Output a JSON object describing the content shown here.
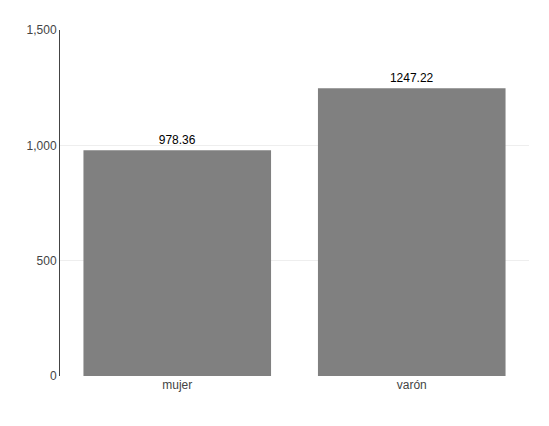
{
  "chart_data": {
    "type": "bar",
    "categories": [
      "mujer",
      "varón"
    ],
    "values": [
      978.36,
      1247.22
    ],
    "color": "#808080",
    "data_labels": true,
    "ylim": [
      0,
      1500
    ],
    "yticks": [
      0,
      500,
      {
        "value": 1000,
        "label": "1,000"
      },
      {
        "value": 1500,
        "label": "1,500"
      }
    ],
    "grid": true
  }
}
